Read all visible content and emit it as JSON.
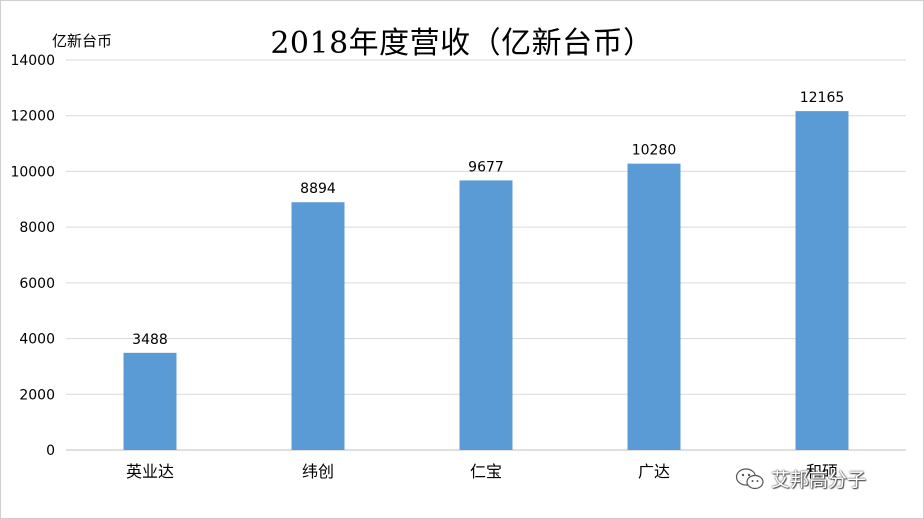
{
  "chart_data": {
    "type": "bar",
    "title": "2018年度营收（亿新台币）",
    "ylabel": "亿新台币",
    "xlabel": "",
    "categories": [
      "英业达",
      "纬创",
      "仁宝",
      "广达",
      "和硕"
    ],
    "values": [
      3488,
      8894,
      9677,
      10280,
      12165
    ],
    "ylim": [
      0,
      14000
    ],
    "yticks": [
      0,
      2000,
      4000,
      6000,
      8000,
      10000,
      12000,
      14000
    ],
    "grid": true,
    "legend": "none",
    "bar_color": "#5b9bd5",
    "grid_color": "#d9d9d9"
  },
  "watermark": {
    "text": "艾邦高分子",
    "icon": "wechat-icon"
  }
}
